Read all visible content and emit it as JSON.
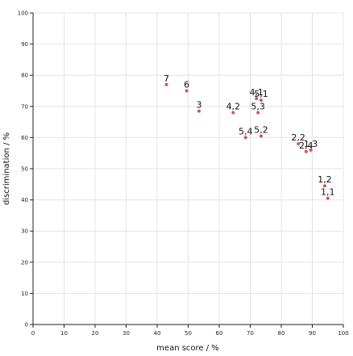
{
  "chart_data": {
    "type": "scatter",
    "xlabel": "mean score / %",
    "ylabel": "discrimination / %",
    "xlim": [
      0,
      100
    ],
    "ylim": [
      0,
      100
    ],
    "xticks": [
      "0",
      "10",
      "20",
      "30",
      "40",
      "50",
      "60",
      "70",
      "80",
      "90",
      "100"
    ],
    "yticks": [
      "0",
      "10",
      "20",
      "30",
      "40",
      "50",
      "60",
      "70",
      "80",
      "90",
      "100"
    ],
    "grid": true,
    "point_color": "#d9534f",
    "points": [
      {
        "label": "7",
        "x": 43,
        "y": 77
      },
      {
        "label": "6",
        "x": 49.5,
        "y": 75
      },
      {
        "label": "3",
        "x": 53.5,
        "y": 68.5
      },
      {
        "label": "4,2",
        "x": 64.5,
        "y": 68
      },
      {
        "label": "4,1",
        "x": 72,
        "y": 72.5
      },
      {
        "label": "5,1",
        "x": 73.5,
        "y": 72
      },
      {
        "label": "5,3",
        "x": 72.5,
        "y": 68
      },
      {
        "label": "5,4",
        "x": 68.5,
        "y": 60
      },
      {
        "label": "5,2",
        "x": 73.5,
        "y": 60.5
      },
      {
        "label": "2,2",
        "x": 85.5,
        "y": 58
      },
      {
        "label": "2,4",
        "x": 88,
        "y": 55.5
      },
      {
        "label": "1,3",
        "x": 89.5,
        "y": 56
      },
      {
        "label": "1,2",
        "x": 94,
        "y": 44.5
      },
      {
        "label": "1,1",
        "x": 95,
        "y": 40.5
      }
    ]
  }
}
